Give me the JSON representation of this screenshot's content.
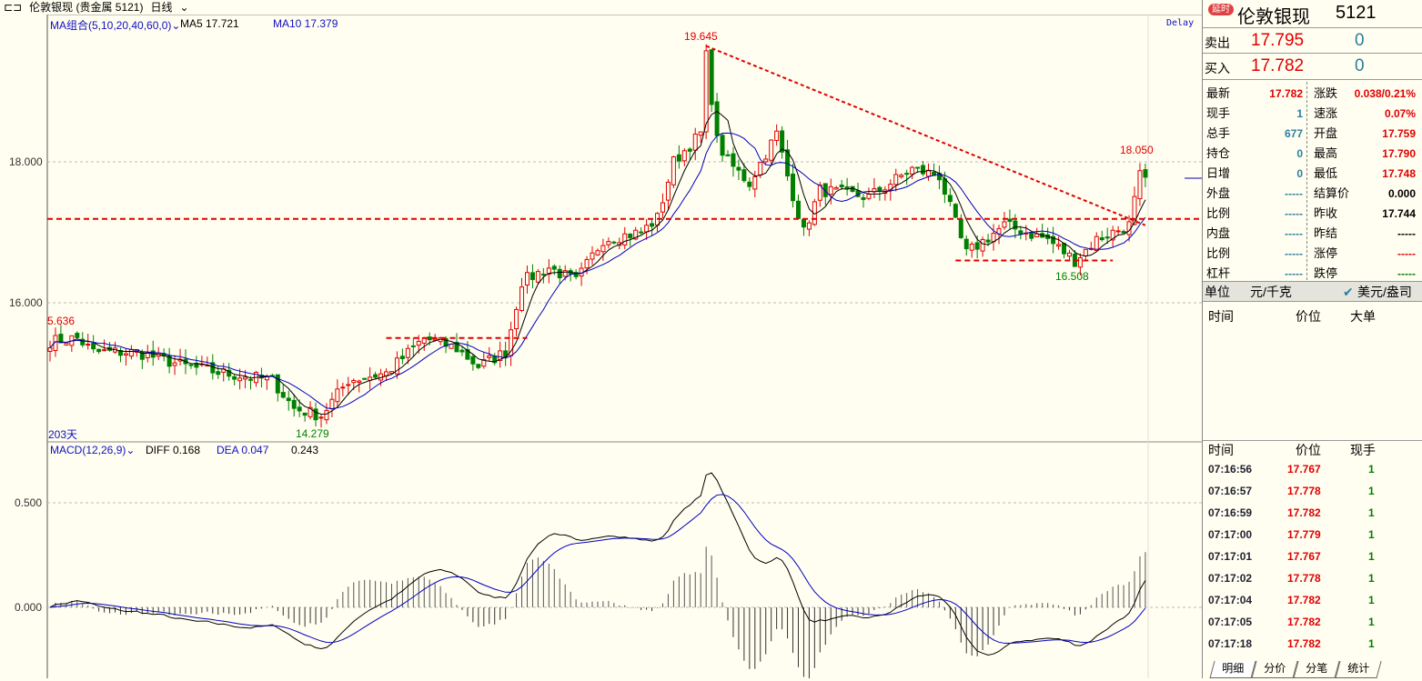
{
  "titlebar": {
    "title": "伦敦银现 (贵金属 5121)",
    "period": "日线"
  },
  "main_panel": {
    "ma_label": "MA组合(5,10,20,40,60,0)",
    "ma5": "MA5 17.721",
    "ma10": "MA10 17.379",
    "delay": "Delay",
    "days": "203天",
    "y_ticks": [
      "18.000",
      "16.000"
    ],
    "annotations": {
      "high": "19.645",
      "low": "14.279",
      "left_high": "5.636",
      "recent_high": "18.050",
      "recent_low": "16.508"
    }
  },
  "macd_panel": {
    "label": "MACD(12,26,9)",
    "diff": "DIFF 0.168",
    "dea": "DEA 0.047",
    "macd": "0.243",
    "y_ticks": [
      "0.500",
      "0.000"
    ]
  },
  "chart_data": {
    "type": "candlestick",
    "days": 203,
    "price_path": [
      [
        0,
        15.45
      ],
      [
        5,
        15.5
      ],
      [
        8,
        15.3
      ],
      [
        16,
        15.3
      ],
      [
        25,
        15.1
      ],
      [
        32,
        15.0
      ],
      [
        41,
        14.9
      ],
      [
        45,
        14.5
      ],
      [
        50,
        14.4
      ],
      [
        55,
        14.9
      ],
      [
        62,
        15.0
      ],
      [
        69,
        15.5
      ],
      [
        75,
        15.35
      ],
      [
        79,
        15.1
      ],
      [
        84,
        15.3
      ],
      [
        87,
        16.3
      ],
      [
        92,
        16.5
      ],
      [
        97,
        16.3
      ],
      [
        102,
        16.9
      ],
      [
        109,
        17.0
      ],
      [
        112,
        17.2
      ],
      [
        115,
        18.0
      ],
      [
        120,
        18.4
      ],
      [
        121,
        19.5
      ],
      [
        123,
        18.3
      ],
      [
        125,
        18.0
      ],
      [
        129,
        17.7
      ],
      [
        134,
        18.4
      ],
      [
        136,
        17.8
      ],
      [
        139,
        17.0
      ],
      [
        142,
        17.6
      ],
      [
        151,
        17.5
      ],
      [
        159,
        17.9
      ],
      [
        164,
        17.8
      ],
      [
        168,
        16.9
      ],
      [
        169,
        16.7
      ],
      [
        176,
        17.1
      ],
      [
        184,
        16.9
      ],
      [
        189,
        16.6
      ],
      [
        193,
        16.9
      ],
      [
        199,
        17.1
      ],
      [
        201,
        17.8
      ],
      [
        202,
        17.78
      ]
    ],
    "price_range": [
      13.9,
      20.0
    ],
    "macd_range": [
      -0.3,
      0.75
    ],
    "support_lines": [
      17.19,
      15.5,
      16.6
    ],
    "trendline": [
      [
        121,
        19.645
      ],
      [
        202,
        17.1
      ]
    ]
  },
  "quote": {
    "badge": "延时",
    "name": "伦敦银现",
    "code": "5121",
    "sell_label": "卖出",
    "sell_price": "17.795",
    "sell_vol": "0",
    "buy_label": "买入",
    "buy_price": "17.782",
    "buy_vol": "0",
    "left": [
      {
        "l": "最新",
        "v": "17.782",
        "c": "#e00000"
      },
      {
        "l": "现手",
        "v": "1",
        "c": "#2a7f9f"
      },
      {
        "l": "总手",
        "v": "677",
        "c": "#2a7f9f"
      },
      {
        "l": "持仓",
        "v": "0",
        "c": "#2a7f9f"
      },
      {
        "l": "日增",
        "v": "0",
        "c": "#2a7f9f"
      },
      {
        "l": "外盘",
        "v": "-----",
        "c": "#2a7f9f"
      },
      {
        "l": "比例",
        "v": "-----",
        "c": "#2a7f9f"
      },
      {
        "l": "内盘",
        "v": "-----",
        "c": "#2a7f9f"
      },
      {
        "l": "比例",
        "v": "-----",
        "c": "#2a7f9f"
      },
      {
        "l": "杠杆",
        "v": "-----",
        "c": "#2a7f9f"
      }
    ],
    "right": [
      {
        "l": "涨跌",
        "v": "0.038/0.21%",
        "c": "#e00000"
      },
      {
        "l": "速涨",
        "v": "0.07%",
        "c": "#e00000"
      },
      {
        "l": "开盘",
        "v": "17.759",
        "c": "#e00000"
      },
      {
        "l": "最高",
        "v": "17.790",
        "c": "#e00000"
      },
      {
        "l": "最低",
        "v": "17.748",
        "c": "#e00000"
      },
      {
        "l": "结算价",
        "v": "0.000",
        "c": "#000"
      },
      {
        "l": "昨收",
        "v": "17.744",
        "c": "#000"
      },
      {
        "l": "昨结",
        "v": "-----",
        "c": "#000"
      },
      {
        "l": "涨停",
        "v": "-----",
        "c": "#e00000"
      },
      {
        "l": "跌停",
        "v": "-----",
        "c": "#008000"
      }
    ],
    "unit_label": "单位",
    "unit1": "元/千克",
    "unit2": "美元/盎司",
    "big_hdr": [
      "时间",
      "价位",
      "大单"
    ],
    "tick_hdr": [
      "时间",
      "价位",
      "现手"
    ],
    "ticks": [
      [
        "07:16:56",
        "17.767",
        "1"
      ],
      [
        "07:16:57",
        "17.778",
        "1"
      ],
      [
        "07:16:59",
        "17.782",
        "1"
      ],
      [
        "07:17:00",
        "17.779",
        "1"
      ],
      [
        "07:17:01",
        "17.767",
        "1"
      ],
      [
        "07:17:02",
        "17.778",
        "1"
      ],
      [
        "07:17:04",
        "17.782",
        "1"
      ],
      [
        "07:17:05",
        "17.782",
        "1"
      ],
      [
        "07:17:18",
        "17.782",
        "1"
      ]
    ],
    "tabs": [
      "明细",
      "分价",
      "分笔",
      "统计"
    ]
  },
  "colors": {
    "up": "#e00000",
    "down": "#008000",
    "ma5": "#000000",
    "ma10": "#0000c0"
  }
}
